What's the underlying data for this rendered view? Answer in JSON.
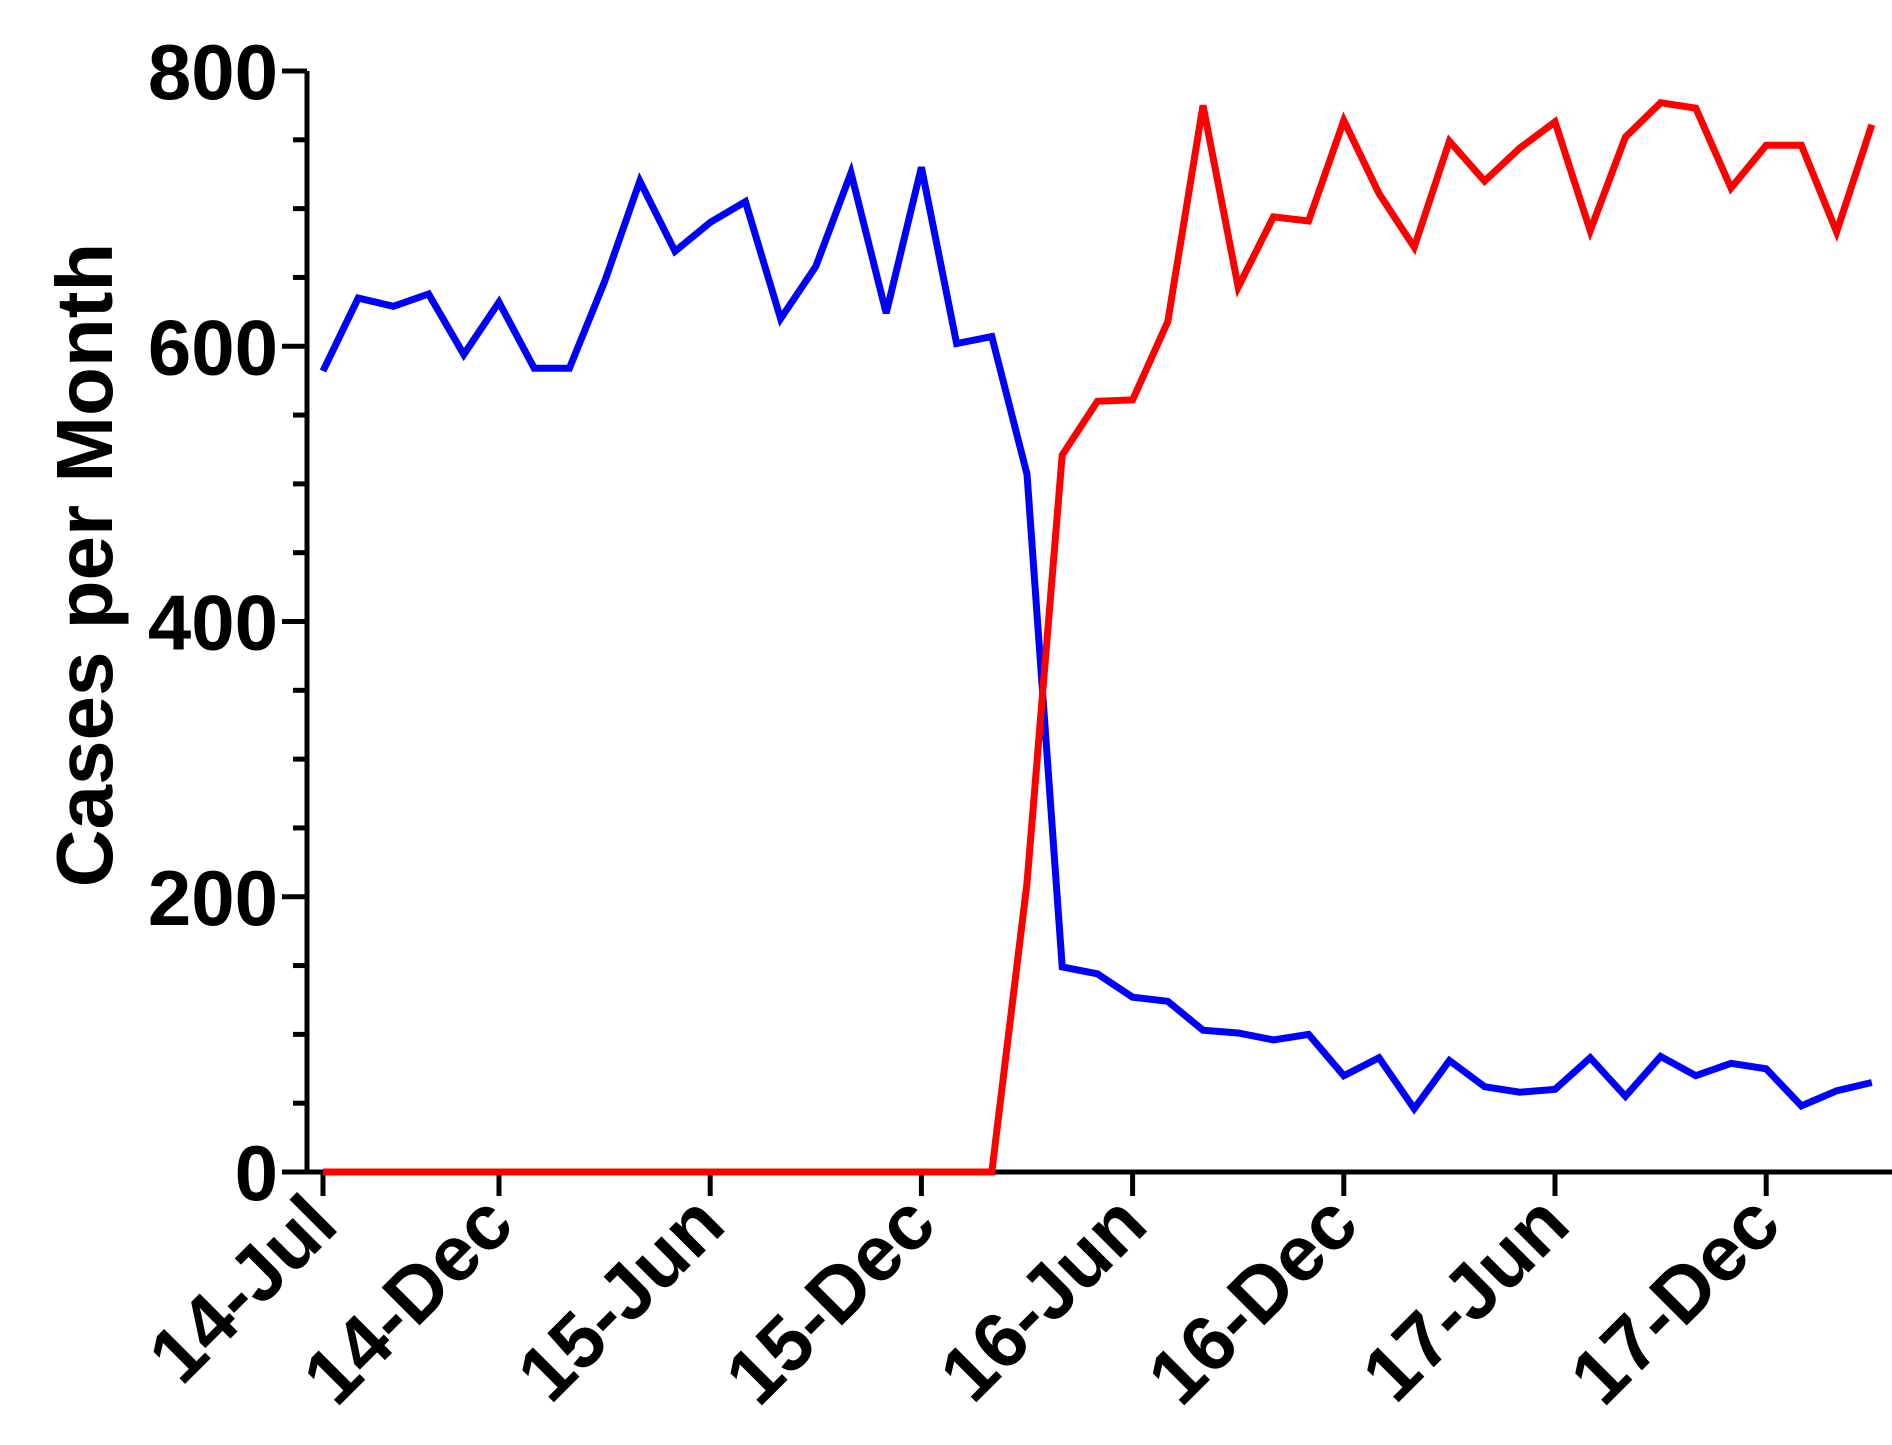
{
  "chart_data": {
    "type": "line",
    "title": "",
    "xlabel": "",
    "ylabel": "Cases per Month",
    "ylim": [
      0,
      800
    ],
    "y_ticks": [
      0,
      200,
      400,
      600,
      800
    ],
    "x_tick_labels": [
      "14-Jul",
      "14-Dec",
      "15-Jun",
      "15-Dec",
      "16-Jun",
      "16-Dec",
      "17-Jun",
      "17-Dec"
    ],
    "grid": false,
    "legend": "none",
    "series": [
      {
        "color": "#0000ff",
        "values": [
          582,
          635,
          629,
          638,
          594,
          632,
          584,
          584,
          647,
          720,
          669,
          690,
          705,
          620,
          658,
          726,
          624,
          730,
          602,
          607,
          507,
          149,
          144,
          127,
          124,
          103,
          101,
          96,
          100,
          70,
          83,
          46,
          81,
          62,
          58,
          60,
          83,
          55,
          84,
          70,
          79,
          75,
          48,
          59,
          65
        ]
      },
      {
        "color": "#ff0000",
        "values": [
          0,
          0,
          0,
          0,
          0,
          0,
          0,
          0,
          0,
          0,
          0,
          0,
          0,
          0,
          0,
          0,
          0,
          0,
          0,
          0,
          210,
          521,
          560,
          561,
          618,
          775,
          643,
          694,
          691,
          764,
          711,
          672,
          749,
          720,
          744,
          763,
          684,
          752,
          777,
          773,
          715,
          746,
          746,
          683,
          761
        ]
      }
    ]
  }
}
